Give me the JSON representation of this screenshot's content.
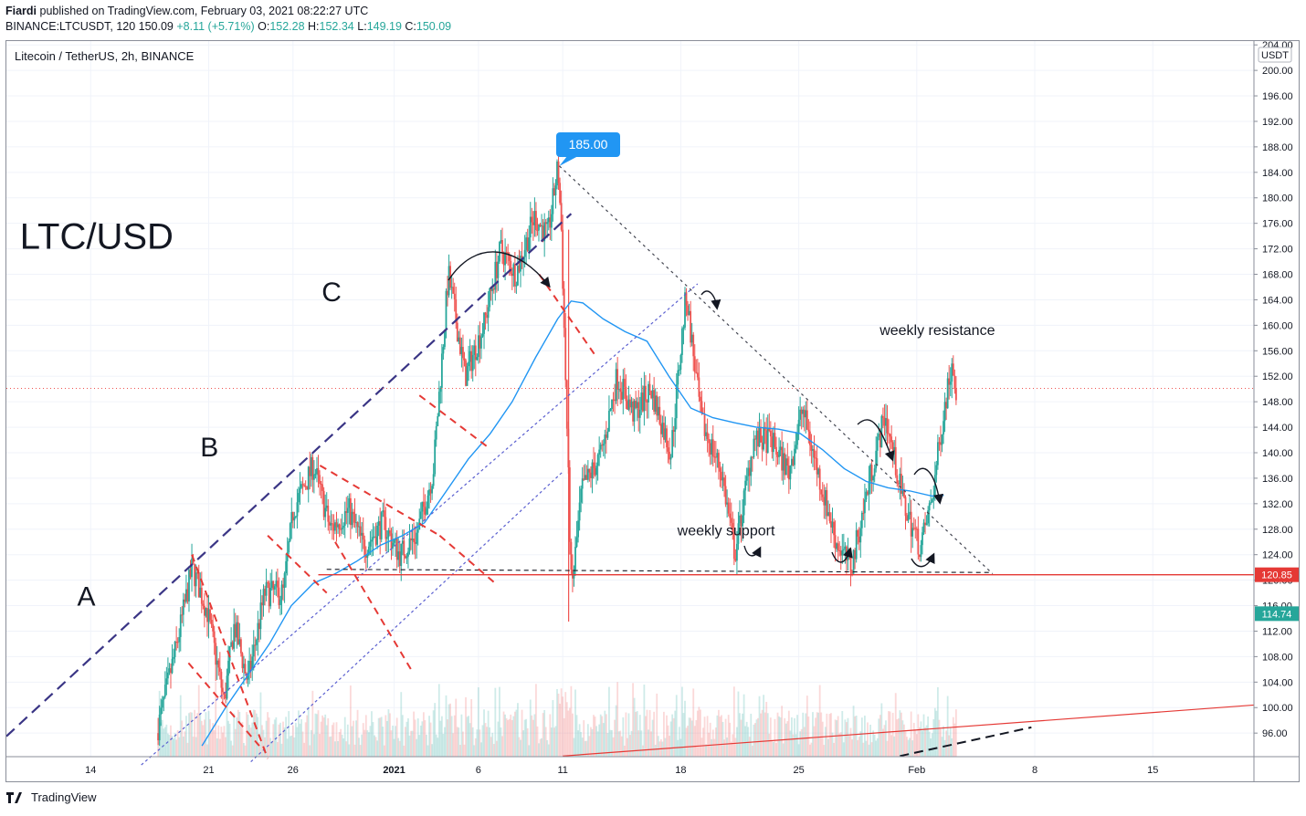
{
  "header": {
    "publisher": "Fiardi",
    "published_text": "published on TradingView.com, February 03, 2021 08:22:27 UTC",
    "symbol": "BINANCE:LTCUSDT, 120",
    "last": "150.09",
    "change": "+8.11 (+5.71%)",
    "o_label": "O:",
    "o": "152.28",
    "h_label": "H:",
    "h": "152.34",
    "l_label": "L:",
    "l": "149.19",
    "c_label": "C:",
    "c": "150.09"
  },
  "legend": {
    "title": "Litecoin / TetherUS, 2h, BINANCE"
  },
  "price_scale": {
    "currency": "USDT"
  },
  "footer": {
    "brand": "TradingView"
  },
  "colors": {
    "up": "#26a69a",
    "down": "#ef5350",
    "ma": "#2196f3",
    "channel": "#3a3585",
    "support": "#e53935",
    "callout": "#2196f3"
  },
  "chart_data": {
    "type": "candlestick",
    "title": "Litecoin / TetherUS, 2h, BINANCE",
    "y_axis": {
      "range": [
        92.3,
        204.6
      ],
      "ticks": [
        96,
        100,
        104,
        108,
        112,
        116,
        120,
        124,
        128,
        132,
        136,
        140,
        144,
        148,
        152,
        156,
        160,
        164,
        168,
        172,
        176,
        180,
        184,
        188,
        192,
        196,
        200,
        204
      ],
      "tick_labels": [
        "96.00",
        "100.00",
        "104.00",
        "108.00",
        "112.00",
        "116.00",
        "120.00",
        "124.00",
        "128.00",
        "132.00",
        "136.00",
        "140.00",
        "144.00",
        "148.00",
        "152.00",
        "156.00",
        "160.00",
        "164.00",
        "168.00",
        "172.00",
        "176.00",
        "180.00",
        "184.00",
        "188.00",
        "192.00",
        "196.00",
        "200.00",
        "204.00"
      ]
    },
    "x_axis": {
      "ticks": [
        {
          "label": "14",
          "day": 14
        },
        {
          "label": "21",
          "day": 21
        },
        {
          "label": "26",
          "day": 26
        },
        {
          "label": "2021",
          "day": 32
        },
        {
          "label": "6",
          "day": 37
        },
        {
          "label": "11",
          "day": 42
        },
        {
          "label": "18",
          "day": 49
        },
        {
          "label": "25",
          "day": 56
        },
        {
          "label": "Feb",
          "day": 63
        },
        {
          "label": "8",
          "day": 70
        },
        {
          "label": "15",
          "day": 77
        }
      ],
      "day_range": [
        9,
        83
      ]
    },
    "price_path": [
      [
        18.0,
        96
      ],
      [
        19.2,
        110
      ],
      [
        20.1,
        122
      ],
      [
        21.0,
        115
      ],
      [
        22.0,
        101
      ],
      [
        22.6,
        113
      ],
      [
        23.4,
        104
      ],
      [
        24.4,
        118
      ],
      [
        25.5,
        118
      ],
      [
        26.1,
        131
      ],
      [
        27.3,
        138
      ],
      [
        28.3,
        128
      ],
      [
        29.4,
        131
      ],
      [
        30.3,
        125
      ],
      [
        31.4,
        129
      ],
      [
        32.4,
        124
      ],
      [
        33.4,
        127
      ],
      [
        34.4,
        137
      ],
      [
        35.3,
        168
      ],
      [
        36.3,
        152
      ],
      [
        37.4,
        160
      ],
      [
        38.4,
        172
      ],
      [
        39.3,
        168
      ],
      [
        40.4,
        177
      ],
      [
        41.2,
        174
      ],
      [
        41.8,
        185
      ],
      [
        42.0,
        175
      ],
      [
        42.3,
        147
      ],
      [
        42.6,
        118
      ],
      [
        43.2,
        134
      ],
      [
        44.4,
        140
      ],
      [
        45.3,
        152
      ],
      [
        46.3,
        146
      ],
      [
        47.3,
        150
      ],
      [
        48.5,
        140
      ],
      [
        49.4,
        165
      ],
      [
        50.3,
        145
      ],
      [
        51.5,
        137
      ],
      [
        52.3,
        124
      ],
      [
        53.4,
        142
      ],
      [
        54.4,
        142
      ],
      [
        55.5,
        137
      ],
      [
        56.3,
        147
      ],
      [
        57.3,
        136
      ],
      [
        58.3,
        126
      ],
      [
        59.2,
        122
      ],
      [
        60.3,
        136
      ],
      [
        61.2,
        146
      ],
      [
        62.3,
        132
      ],
      [
        63.3,
        125
      ],
      [
        64.0,
        133
      ],
      [
        64.6,
        145
      ],
      [
        65.2,
        155
      ],
      [
        65.4,
        150
      ]
    ],
    "series": [
      {
        "name": "",
        "type": "moving-average",
        "x": [
          20.6,
          22.0,
          23.3,
          24.6,
          25.9,
          27.2,
          28.5,
          29.8,
          31.2,
          32.5,
          33.8,
          35.1,
          36.4,
          37.7,
          39.0,
          40.4,
          41.7,
          42.5,
          43.2,
          44.4,
          45.7,
          47.0,
          48.3,
          49.6,
          50.9,
          52.2,
          53.5,
          54.8,
          56.1,
          57.4,
          58.7,
          60.0,
          61.3,
          62.6,
          63.9,
          64.6
        ],
        "y": [
          94,
          100,
          105,
          110,
          116,
          119.5,
          121,
          123,
          125.5,
          127,
          129,
          134,
          139,
          143,
          148,
          155,
          161,
          163.8,
          163.5,
          161,
          159,
          157.5,
          152,
          147,
          145.5,
          144.7,
          144,
          143.7,
          143,
          140.5,
          137.5,
          135.5,
          134.5,
          134,
          133.2,
          133.3
        ]
      }
    ],
    "volume": {
      "note": "histogram bars along the bottom"
    },
    "drawings": {
      "channel_upper": {
        "from": [
          9.0,
          95.5
        ],
        "to": [
          42.5,
          177.5
        ]
      },
      "channel_mid": {
        "from": [
          17.0,
          91
        ],
        "to": [
          50.0,
          166.5
        ]
      },
      "channel_lower": {
        "from": [
          23.5,
          91.5
        ],
        "to": [
          42.0,
          137
        ]
      },
      "resistance": {
        "from": [
          41.8,
          185
        ],
        "to": [
          67.5,
          121
        ]
      },
      "support": {
        "from": [
          28.0,
          121.7
        ],
        "to": [
          67.5,
          121.2
        ]
      },
      "long_trend": {
        "from": [
          42.0,
          92.4
        ],
        "to": [
          83,
          100.4
        ]
      },
      "dashed_bottom": {
        "from": [
          62.0,
          92.4
        ],
        "to": [
          69.8,
          96.9
        ]
      },
      "correction_legs": [
        {
          "from": [
            20.0,
            124
          ],
          "to": [
            24.5,
            92
          ]
        },
        {
          "from": [
            27.6,
            138
          ],
          "to": [
            34.7,
            127
          ]
        },
        {
          "from": [
            34.7,
            127
          ],
          "to": [
            38.0,
            119.5
          ]
        },
        {
          "from": [
            24.5,
            127
          ],
          "to": [
            28.0,
            118
          ]
        },
        {
          "from": [
            28.5,
            126
          ],
          "to": [
            33.0,
            106
          ]
        },
        {
          "from": [
            19.8,
            107
          ],
          "to": [
            24.0,
            94
          ]
        },
        {
          "from": [
            33.5,
            149
          ],
          "to": [
            37.5,
            141
          ]
        },
        {
          "from": [
            40.6,
            168
          ],
          "to": [
            44.0,
            155
          ]
        }
      ]
    },
    "annotations": [
      {
        "text": "LTC/USD",
        "x": 9.8,
        "y": 172
      },
      {
        "text": "A",
        "x": 13.2,
        "y": 116
      },
      {
        "text": "B",
        "x": 20.5,
        "y": 139.4
      },
      {
        "text": "C",
        "x": 27.7,
        "y": 163.8
      },
      {
        "text": "weekly resistance",
        "x": 60.8,
        "y": 158.5
      },
      {
        "text": "weekly support",
        "x": 48.8,
        "y": 127
      }
    ],
    "callout": {
      "label": "185.00",
      "value": 185.0
    },
    "price_labels": [
      {
        "value": 120.85,
        "label": "120.85",
        "color": "#e53935"
      },
      {
        "value": 114.74,
        "label": "114.74",
        "color": "#26a69a"
      }
    ],
    "current_price": 150.09
  }
}
